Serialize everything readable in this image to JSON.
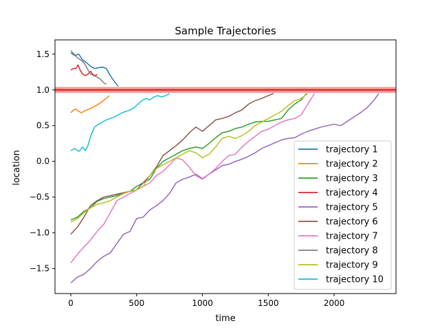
{
  "chart_data": {
    "type": "line",
    "title": "Sample Trajectories",
    "xlabel": "time",
    "ylabel": "location",
    "xlim": [
      -120,
      2470
    ],
    "ylim": [
      -1.85,
      1.7
    ],
    "x_ticks": [
      0,
      500,
      1000,
      1500,
      2000
    ],
    "x_tick_labels": [
      "0",
      "500",
      "1000",
      "1500",
      "2000"
    ],
    "y_ticks": [
      -1.5,
      -1.0,
      -0.5,
      0.0,
      0.5,
      1.0,
      1.5
    ],
    "y_tick_labels": [
      "−1.5",
      "−1.0",
      "−0.5",
      "0.0",
      "0.5",
      "1.0",
      "1.5"
    ],
    "grid": false,
    "legend_position": "lower-right",
    "threshold": {
      "y": 1.0,
      "band": [
        0.96,
        1.04
      ],
      "line_color": "#cc0000",
      "band_color": "#ff7f7f"
    },
    "series": [
      {
        "name": "trajectory 1",
        "color": "#1f77b4",
        "points": [
          [
            0,
            1.52
          ],
          [
            30,
            1.48
          ],
          [
            60,
            1.5
          ],
          [
            90,
            1.42
          ],
          [
            120,
            1.38
          ],
          [
            150,
            1.33
          ],
          [
            180,
            1.3
          ],
          [
            210,
            1.31
          ],
          [
            240,
            1.32
          ],
          [
            270,
            1.3
          ],
          [
            300,
            1.2
          ],
          [
            330,
            1.12
          ],
          [
            360,
            1.05
          ]
        ]
      },
      {
        "name": "trajectory 2",
        "color": "#ff7f0e",
        "points": [
          [
            0,
            0.68
          ],
          [
            20,
            0.72
          ],
          [
            40,
            0.73
          ],
          [
            60,
            0.7
          ],
          [
            80,
            0.68
          ],
          [
            100,
            0.7
          ],
          [
            120,
            0.72
          ],
          [
            150,
            0.74
          ],
          [
            180,
            0.77
          ],
          [
            210,
            0.8
          ],
          [
            240,
            0.84
          ],
          [
            270,
            0.88
          ],
          [
            290,
            0.92
          ]
        ]
      },
      {
        "name": "trajectory 3",
        "color": "#2ca02c",
        "points": [
          [
            0,
            -0.82
          ],
          [
            50,
            -0.78
          ],
          [
            100,
            -0.7
          ],
          [
            150,
            -0.65
          ],
          [
            200,
            -0.56
          ],
          [
            250,
            -0.52
          ],
          [
            300,
            -0.5
          ],
          [
            350,
            -0.48
          ],
          [
            400,
            -0.44
          ],
          [
            450,
            -0.42
          ],
          [
            500,
            -0.35
          ],
          [
            550,
            -0.3
          ],
          [
            600,
            -0.25
          ],
          [
            650,
            -0.1
          ],
          [
            700,
            0.0
          ],
          [
            750,
            0.05
          ],
          [
            800,
            0.1
          ],
          [
            850,
            0.15
          ],
          [
            900,
            0.18
          ],
          [
            950,
            0.2
          ],
          [
            1000,
            0.18
          ],
          [
            1050,
            0.25
          ],
          [
            1100,
            0.33
          ],
          [
            1150,
            0.4
          ],
          [
            1200,
            0.42
          ],
          [
            1250,
            0.46
          ],
          [
            1300,
            0.48
          ],
          [
            1350,
            0.52
          ],
          [
            1400,
            0.55
          ],
          [
            1450,
            0.56
          ],
          [
            1500,
            0.56
          ],
          [
            1550,
            0.58
          ],
          [
            1600,
            0.6
          ],
          [
            1650,
            0.72
          ],
          [
            1700,
            0.8
          ],
          [
            1750,
            0.86
          ],
          [
            1790,
            0.95
          ]
        ]
      },
      {
        "name": "trajectory 4",
        "color": "#d62728",
        "points": [
          [
            0,
            1.28
          ],
          [
            20,
            1.3
          ],
          [
            40,
            1.3
          ],
          [
            55,
            1.35
          ],
          [
            70,
            1.28
          ],
          [
            90,
            1.22
          ],
          [
            110,
            1.2
          ],
          [
            130,
            1.22
          ],
          [
            150,
            1.26
          ],
          [
            170,
            1.21
          ],
          [
            190,
            1.2
          ],
          [
            200,
            1.22
          ]
        ]
      },
      {
        "name": "trajectory 5",
        "color": "#9467bd",
        "points": [
          [
            0,
            -1.7
          ],
          [
            50,
            -1.62
          ],
          [
            100,
            -1.58
          ],
          [
            150,
            -1.5
          ],
          [
            200,
            -1.4
          ],
          [
            250,
            -1.33
          ],
          [
            300,
            -1.28
          ],
          [
            350,
            -1.15
          ],
          [
            400,
            -1.02
          ],
          [
            450,
            -0.98
          ],
          [
            500,
            -0.8
          ],
          [
            550,
            -0.78
          ],
          [
            600,
            -0.68
          ],
          [
            650,
            -0.62
          ],
          [
            700,
            -0.55
          ],
          [
            750,
            -0.45
          ],
          [
            800,
            -0.3
          ],
          [
            850,
            -0.25
          ],
          [
            900,
            -0.22
          ],
          [
            950,
            -0.18
          ],
          [
            1000,
            -0.24
          ],
          [
            1050,
            -0.18
          ],
          [
            1100,
            -0.12
          ],
          [
            1150,
            -0.06
          ],
          [
            1200,
            -0.04
          ],
          [
            1250,
            0.0
          ],
          [
            1300,
            0.03
          ],
          [
            1350,
            0.07
          ],
          [
            1400,
            0.12
          ],
          [
            1450,
            0.18
          ],
          [
            1500,
            0.22
          ],
          [
            1550,
            0.26
          ],
          [
            1600,
            0.3
          ],
          [
            1650,
            0.32
          ],
          [
            1700,
            0.33
          ],
          [
            1750,
            0.38
          ],
          [
            1800,
            0.42
          ],
          [
            1850,
            0.45
          ],
          [
            1900,
            0.48
          ],
          [
            1950,
            0.5
          ],
          [
            2000,
            0.52
          ],
          [
            2050,
            0.5
          ],
          [
            2100,
            0.56
          ],
          [
            2150,
            0.62
          ],
          [
            2200,
            0.68
          ],
          [
            2250,
            0.75
          ],
          [
            2300,
            0.85
          ],
          [
            2340,
            0.95
          ]
        ]
      },
      {
        "name": "trajectory 6",
        "color": "#8c564b",
        "points": [
          [
            0,
            -1.02
          ],
          [
            50,
            -0.92
          ],
          [
            100,
            -0.78
          ],
          [
            150,
            -0.62
          ],
          [
            200,
            -0.55
          ],
          [
            250,
            -0.5
          ],
          [
            300,
            -0.48
          ],
          [
            350,
            -0.46
          ],
          [
            400,
            -0.44
          ],
          [
            450,
            -0.42
          ],
          [
            500,
            -0.4
          ],
          [
            550,
            -0.3
          ],
          [
            600,
            -0.2
          ],
          [
            650,
            -0.08
          ],
          [
            700,
            0.08
          ],
          [
            750,
            0.15
          ],
          [
            800,
            0.22
          ],
          [
            850,
            0.3
          ],
          [
            900,
            0.4
          ],
          [
            950,
            0.48
          ],
          [
            1000,
            0.42
          ],
          [
            1050,
            0.5
          ],
          [
            1100,
            0.58
          ],
          [
            1150,
            0.6
          ],
          [
            1200,
            0.63
          ],
          [
            1250,
            0.68
          ],
          [
            1300,
            0.72
          ],
          [
            1350,
            0.8
          ],
          [
            1400,
            0.85
          ],
          [
            1450,
            0.88
          ],
          [
            1500,
            0.92
          ],
          [
            1540,
            0.95
          ]
        ]
      },
      {
        "name": "trajectory 7",
        "color": "#e377c2",
        "points": [
          [
            0,
            -1.42
          ],
          [
            50,
            -1.3
          ],
          [
            100,
            -1.2
          ],
          [
            150,
            -1.1
          ],
          [
            200,
            -0.98
          ],
          [
            250,
            -0.88
          ],
          [
            300,
            -0.72
          ],
          [
            350,
            -0.55
          ],
          [
            400,
            -0.5
          ],
          [
            450,
            -0.45
          ],
          [
            500,
            -0.4
          ],
          [
            550,
            -0.35
          ],
          [
            600,
            -0.3
          ],
          [
            650,
            -0.2
          ],
          [
            700,
            -0.14
          ],
          [
            750,
            -0.05
          ],
          [
            800,
            0.05
          ],
          [
            850,
            0.02
          ],
          [
            900,
            -0.08
          ],
          [
            950,
            -0.2
          ],
          [
            1000,
            -0.25
          ],
          [
            1050,
            -0.18
          ],
          [
            1100,
            -0.1
          ],
          [
            1150,
            0.0
          ],
          [
            1200,
            0.08
          ],
          [
            1250,
            0.1
          ],
          [
            1300,
            0.2
          ],
          [
            1350,
            0.28
          ],
          [
            1400,
            0.35
          ],
          [
            1450,
            0.42
          ],
          [
            1500,
            0.45
          ],
          [
            1550,
            0.5
          ],
          [
            1600,
            0.55
          ],
          [
            1650,
            0.58
          ],
          [
            1700,
            0.6
          ],
          [
            1750,
            0.65
          ],
          [
            1800,
            0.8
          ],
          [
            1850,
            0.95
          ]
        ]
      },
      {
        "name": "trajectory 8",
        "color": "#7f7f7f",
        "points": [
          [
            0,
            1.55
          ],
          [
            25,
            1.5
          ],
          [
            50,
            1.45
          ],
          [
            75,
            1.42
          ],
          [
            100,
            1.38
          ],
          [
            125,
            1.3
          ],
          [
            150,
            1.22
          ],
          [
            175,
            1.2
          ],
          [
            200,
            1.18
          ],
          [
            225,
            1.15
          ],
          [
            250,
            1.1
          ],
          [
            270,
            1.08
          ]
        ]
      },
      {
        "name": "trajectory 9",
        "color": "#bcbd22",
        "points": [
          [
            0,
            -0.85
          ],
          [
            50,
            -0.8
          ],
          [
            100,
            -0.72
          ],
          [
            150,
            -0.65
          ],
          [
            200,
            -0.6
          ],
          [
            250,
            -0.58
          ],
          [
            300,
            -0.55
          ],
          [
            350,
            -0.5
          ],
          [
            400,
            -0.45
          ],
          [
            450,
            -0.42
          ],
          [
            500,
            -0.4
          ],
          [
            550,
            -0.35
          ],
          [
            600,
            -0.2
          ],
          [
            650,
            -0.1
          ],
          [
            700,
            -0.05
          ],
          [
            750,
            0.0
          ],
          [
            800,
            0.05
          ],
          [
            850,
            0.1
          ],
          [
            900,
            0.15
          ],
          [
            950,
            0.12
          ],
          [
            1000,
            0.05
          ],
          [
            1050,
            0.1
          ],
          [
            1100,
            0.2
          ],
          [
            1150,
            0.32
          ],
          [
            1200,
            0.35
          ],
          [
            1250,
            0.32
          ],
          [
            1300,
            0.36
          ],
          [
            1350,
            0.42
          ],
          [
            1400,
            0.5
          ],
          [
            1450,
            0.55
          ],
          [
            1500,
            0.6
          ],
          [
            1550,
            0.65
          ],
          [
            1600,
            0.7
          ],
          [
            1650,
            0.78
          ],
          [
            1700,
            0.85
          ],
          [
            1750,
            0.88
          ],
          [
            1800,
            0.95
          ]
        ]
      },
      {
        "name": "trajectory 10",
        "color": "#17becf",
        "points": [
          [
            0,
            0.15
          ],
          [
            30,
            0.18
          ],
          [
            60,
            0.14
          ],
          [
            90,
            0.2
          ],
          [
            110,
            0.15
          ],
          [
            130,
            0.22
          ],
          [
            150,
            0.35
          ],
          [
            180,
            0.48
          ],
          [
            210,
            0.52
          ],
          [
            240,
            0.55
          ],
          [
            270,
            0.58
          ],
          [
            300,
            0.6
          ],
          [
            330,
            0.62
          ],
          [
            360,
            0.65
          ],
          [
            390,
            0.68
          ],
          [
            420,
            0.7
          ],
          [
            450,
            0.72
          ],
          [
            480,
            0.75
          ],
          [
            510,
            0.8
          ],
          [
            540,
            0.85
          ],
          [
            570,
            0.88
          ],
          [
            600,
            0.86
          ],
          [
            630,
            0.9
          ],
          [
            660,
            0.92
          ],
          [
            690,
            0.9
          ],
          [
            720,
            0.92
          ],
          [
            750,
            0.95
          ]
        ]
      }
    ]
  }
}
